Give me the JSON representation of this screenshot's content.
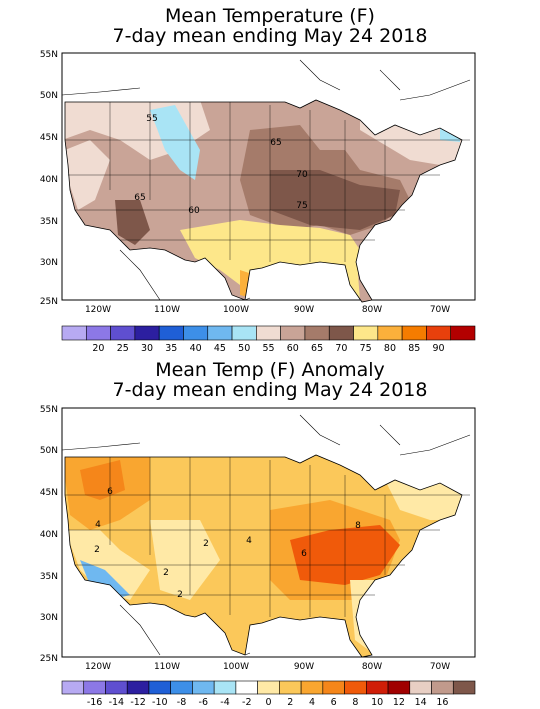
{
  "maps": [
    {
      "title_line1": "Mean Temperature (F)",
      "title_line2": "7-day mean ending May 24 2018",
      "lat_labels": [
        "55N",
        "50N",
        "45N",
        "40N",
        "35N",
        "30N",
        "25N"
      ],
      "lon_labels": [
        "120W",
        "110W",
        "100W",
        "90W",
        "80W",
        "70W"
      ],
      "contour_labels": [
        "55",
        "65",
        "70",
        "75",
        "65",
        "60"
      ],
      "legend": {
        "labels": [
          "20",
          "25",
          "30",
          "35",
          "40",
          "45",
          "50",
          "55",
          "60",
          "65",
          "70",
          "75",
          "80",
          "85",
          "90"
        ],
        "colors": [
          "#b7aaf2",
          "#8c78e6",
          "#5f4fd0",
          "#2c1fa0",
          "#1f5fd6",
          "#3d8fe8",
          "#6fb8f0",
          "#a9e4f5",
          "#f0dcd2",
          "#c9a497",
          "#a57b6a",
          "#7e574a",
          "#fde78a",
          "#fbb03b",
          "#f57c00",
          "#e8400c",
          "#b30000"
        ]
      }
    },
    {
      "title_line1": "Mean Temp (F) Anomaly",
      "title_line2": "7-day mean ending May 24 2018",
      "lat_labels": [
        "55N",
        "50N",
        "45N",
        "40N",
        "35N",
        "30N",
        "25N"
      ],
      "lon_labels": [
        "120W",
        "110W",
        "100W",
        "90W",
        "80W",
        "70W"
      ],
      "contour_labels": [
        "6",
        "4",
        "2",
        "2",
        "4",
        "6",
        "8",
        "2",
        "2"
      ],
      "legend": {
        "labels": [
          "-16",
          "-14",
          "-12",
          "-10",
          "-8",
          "-6",
          "-4",
          "-2",
          "0",
          "2",
          "4",
          "6",
          "8",
          "10",
          "12",
          "14",
          "16"
        ],
        "colors": [
          "#b7aaf2",
          "#8c78e6",
          "#5f4fd0",
          "#2c1fa0",
          "#1f5fd6",
          "#3d8fe8",
          "#6fb8f0",
          "#a9e4f5",
          "#ffffff",
          "#ffe9a6",
          "#fbc85a",
          "#f9a630",
          "#f5861a",
          "#f05a0a",
          "#d01e08",
          "#a00000",
          "#e8cfc4",
          "#c19a8c",
          "#7e574a"
        ]
      }
    }
  ]
}
